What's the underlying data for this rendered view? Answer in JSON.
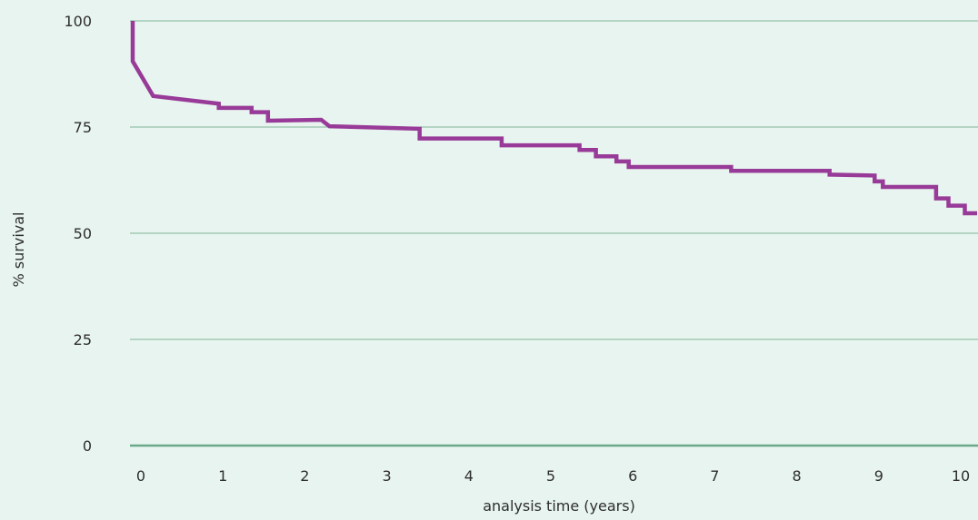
{
  "chart_data": {
    "type": "line",
    "title": "",
    "xlabel": "analysis time (years)",
    "ylabel": "% survival",
    "xlim": [
      -0.1,
      10.2
    ],
    "ylim": [
      0,
      100
    ],
    "x_ticks": [
      0,
      1,
      2,
      3,
      4,
      5,
      6,
      7,
      8,
      9,
      10
    ],
    "y_ticks": [
      0,
      25,
      50,
      75,
      100
    ],
    "grid": "horizontal",
    "legend": "none",
    "colors": {
      "background": "#e8f4ef",
      "grid": "#7fb39a",
      "baseline": "#6aa88a",
      "series": "#983a98"
    },
    "series": [
      {
        "x": [
          -0.1,
          -0.1,
          0.15,
          0.95,
          0.95,
          1.35,
          1.35,
          1.55,
          1.55,
          2.2,
          2.3,
          3.4,
          3.4,
          4.4,
          4.4,
          5.35,
          5.35,
          5.55,
          5.55,
          5.8,
          5.8,
          5.95,
          5.95,
          7.2,
          7.2,
          8.4,
          8.4,
          8.95,
          8.95,
          9.05,
          9.05,
          9.7,
          9.7,
          9.85,
          9.85,
          10.05,
          10.05,
          10.2
        ],
        "y": [
          100,
          90.5,
          82.3,
          80.5,
          79.5,
          79.5,
          78.5,
          78.5,
          76.5,
          76.7,
          75.2,
          74.6,
          72.3,
          72.3,
          70.7,
          70.7,
          69.6,
          69.6,
          68.1,
          68.1,
          66.9,
          66.9,
          65.6,
          65.6,
          64.7,
          64.7,
          63.8,
          63.6,
          62.2,
          62.2,
          60.9,
          60.9,
          58.2,
          58.2,
          56.5,
          56.5,
          54.7,
          54.7
        ]
      }
    ]
  }
}
